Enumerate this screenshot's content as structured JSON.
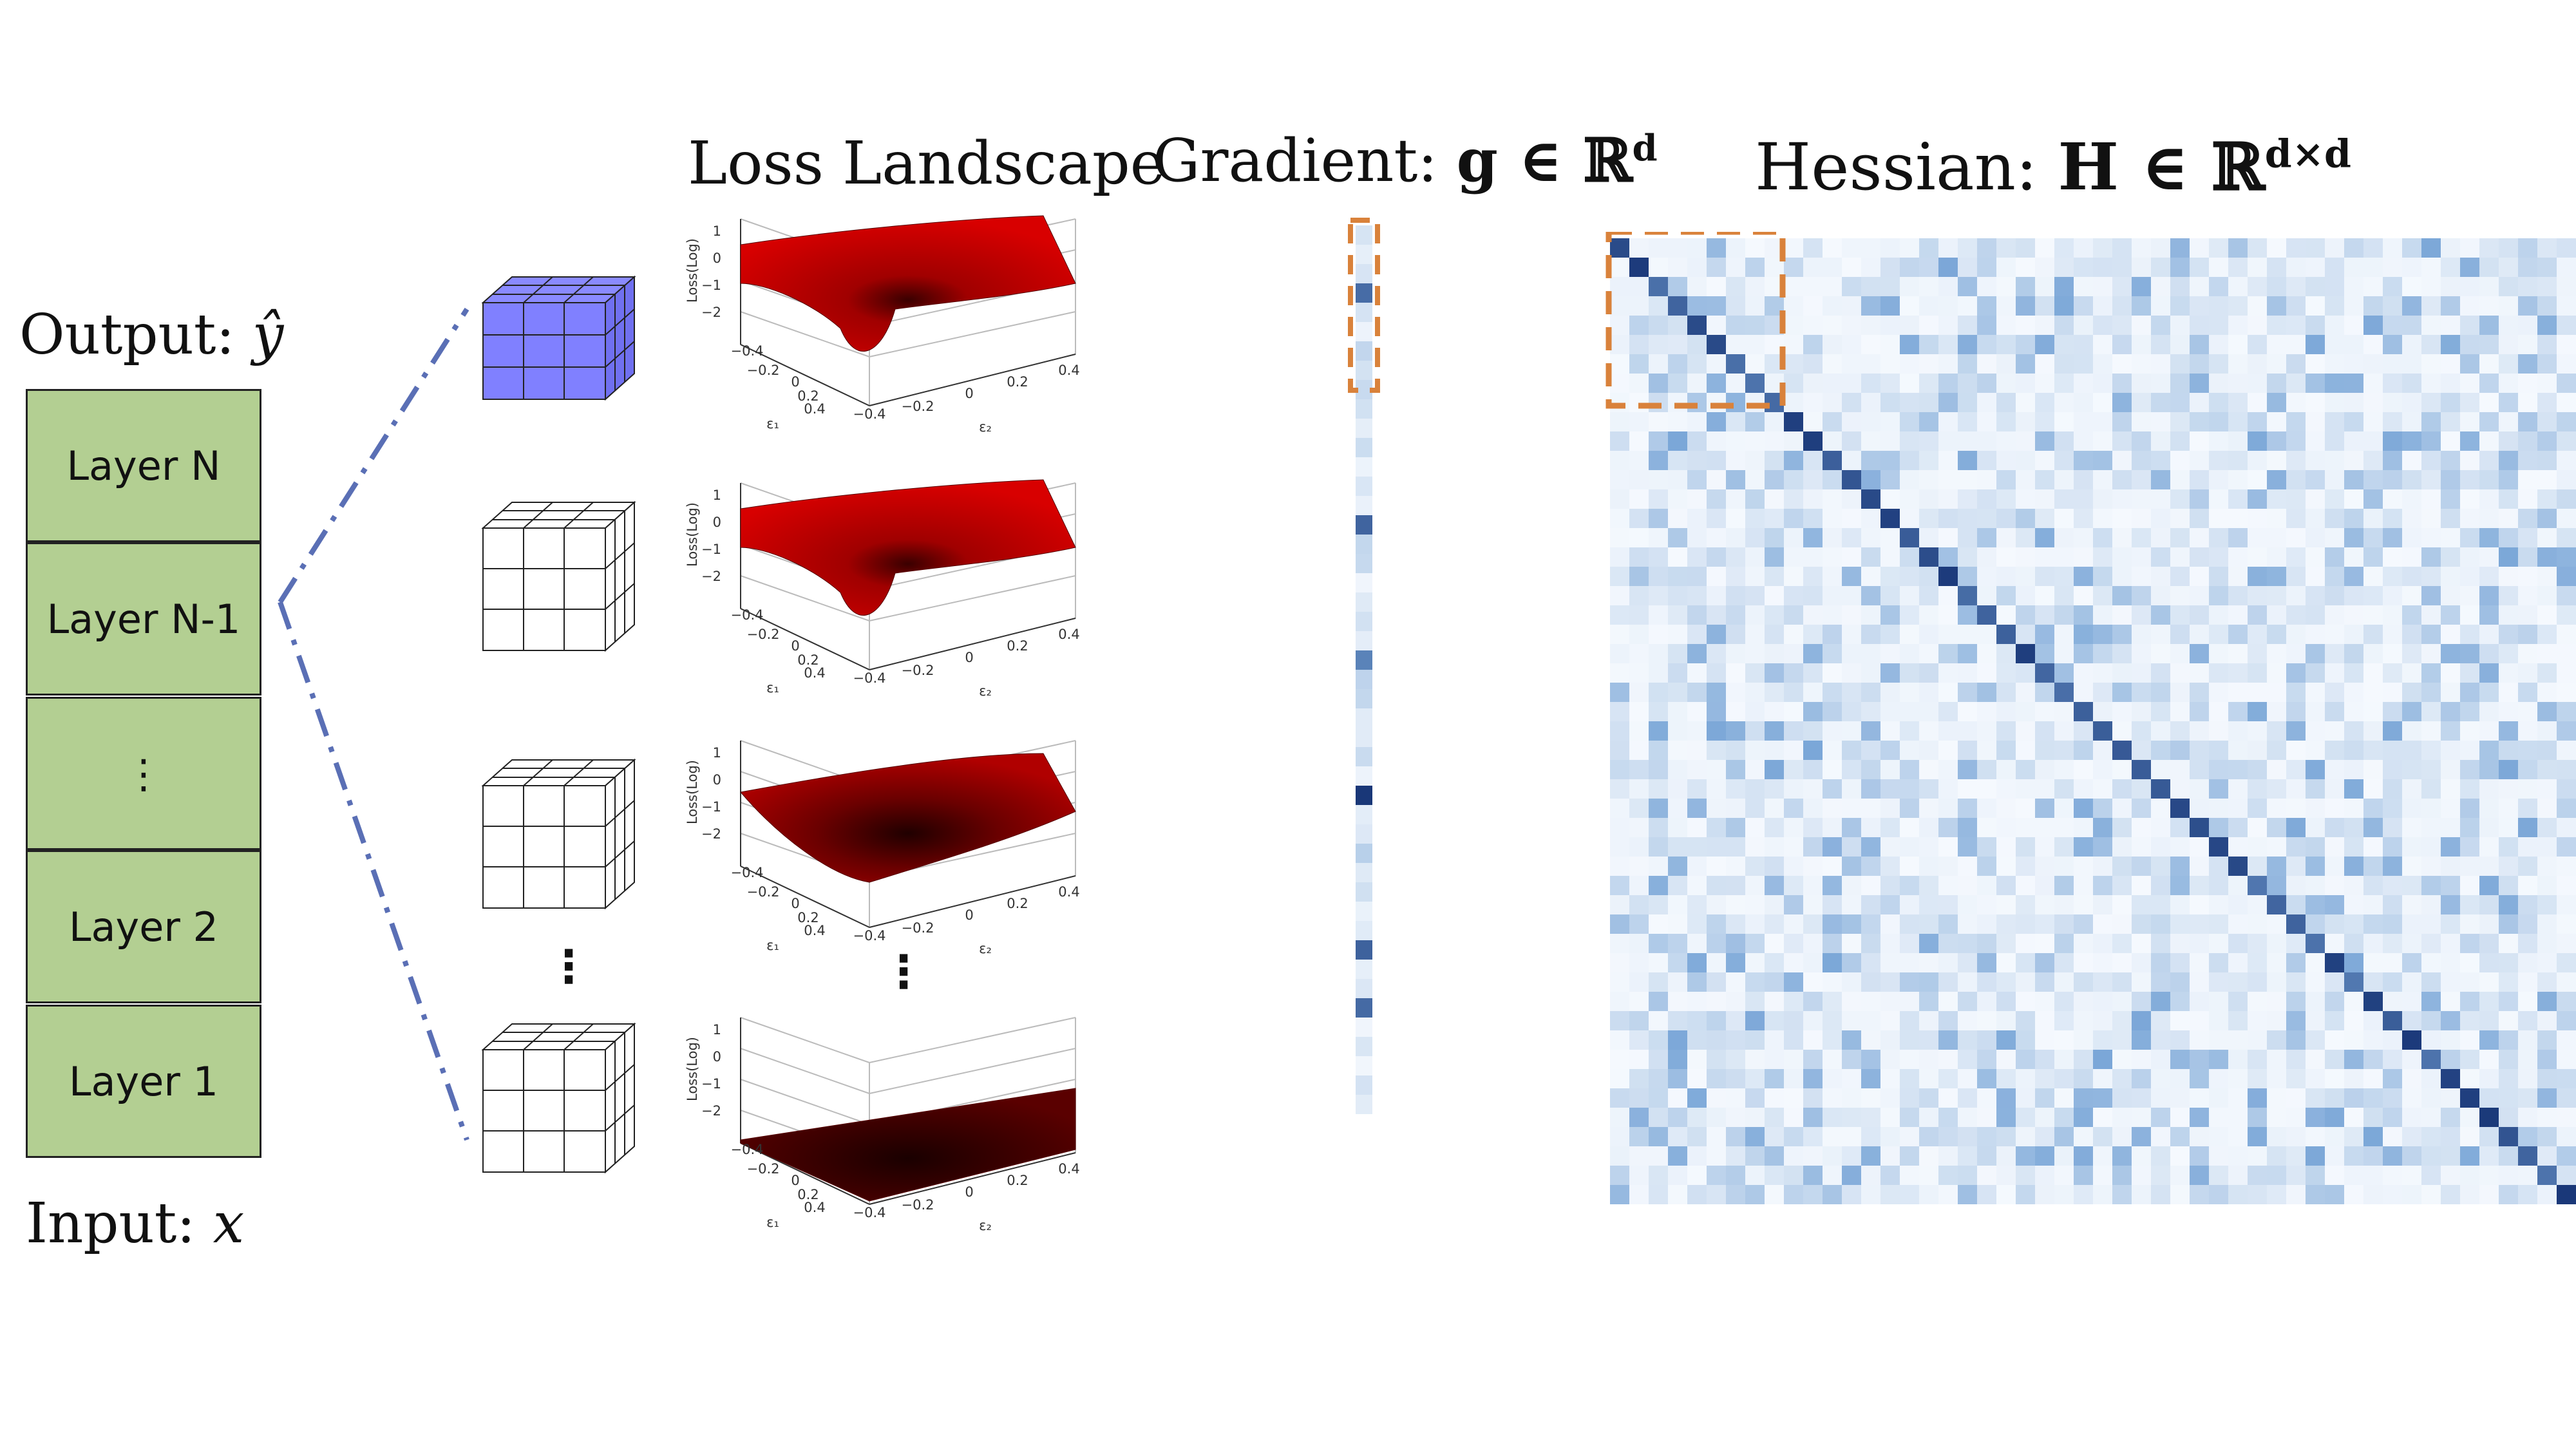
{
  "titles": {
    "loss_landscape": "Loss Landscape",
    "gradient_prefix": "Gradient:",
    "gradient_math": "g ∈ ℝ",
    "gradient_sup": "d",
    "hessian_prefix": "Hessian:",
    "hessian_math": "H ∈ ℝ",
    "hessian_sup": "d×d"
  },
  "network": {
    "output_prefix": "Output:",
    "output_var": "ŷ",
    "input_prefix": "Input:",
    "input_var": "x",
    "layers": [
      "Layer N",
      "Layer N-1",
      "⋮",
      "Layer 2",
      "Layer 1"
    ],
    "ellipsis": "⋮"
  },
  "plot": {
    "zlabel": "Loss(Log)",
    "x1label": "ε₁",
    "x2label": "ε₂",
    "ztick_1": "1",
    "ztick_0": "0",
    "ztick_m1": "−1",
    "ztick_m2": "−2",
    "e1tick_m04": "−0.4",
    "e1tick_m02": "−0.2",
    "e1tick_0": "0",
    "e1tick_02": "0.2",
    "e1tick_04": "0.4",
    "e2tick_m04": "−0.4",
    "e2tick_m02": "−0.2",
    "e2tick_0": "0",
    "e2tick_02": "0.2",
    "e2tick_04": "0.4"
  },
  "colors": {
    "layer_fill": "#b3cf92",
    "cube_active": "#8080ff",
    "dash_line": "#5a6fb5",
    "highlight_box": "#d9823b",
    "surface_red": "#cc0000",
    "surface_dark": "#2a0000"
  }
}
